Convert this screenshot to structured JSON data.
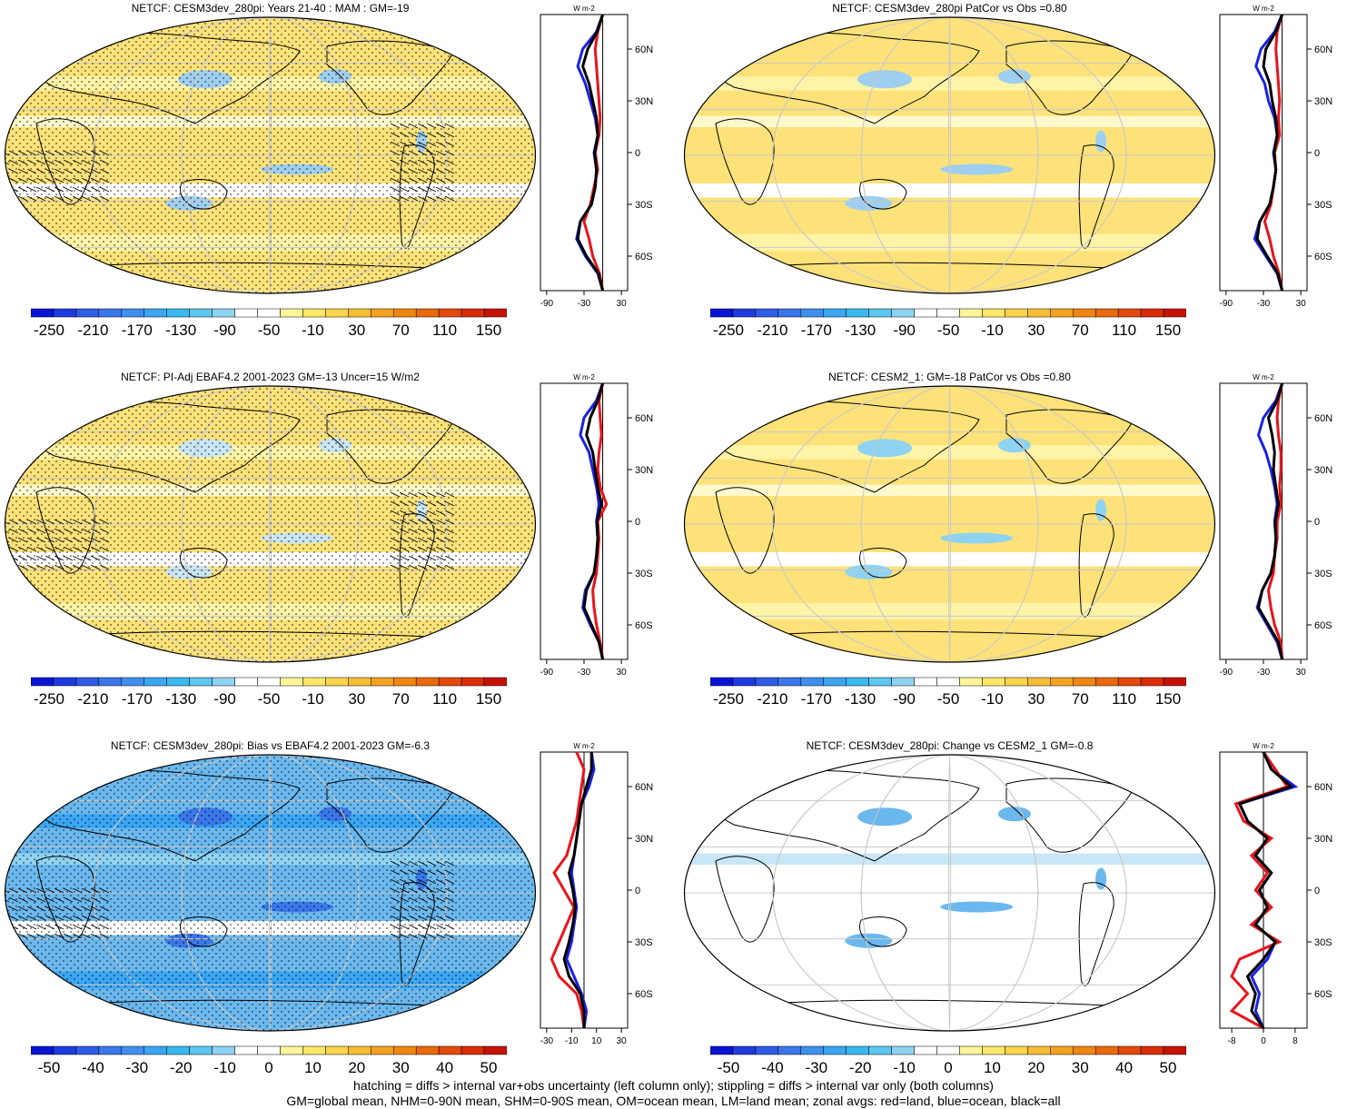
{
  "colors": {
    "ocean_neutral": "#ffffff",
    "land_missing": "#d3d3d3",
    "zonal_land": "#e8141c",
    "zonal_ocean": "#1a21e6",
    "zonal_all": "#000000"
  },
  "zonal_labels": {
    "units": "W m-2",
    "lat_ticks": [
      "60N",
      "30N",
      "0",
      "30S",
      "60S"
    ]
  },
  "colorbars": {
    "wide": {
      "labels": [
        "-250",
        "-210",
        "-170",
        "-130",
        "-90",
        "-50",
        "-10",
        "30",
        "70",
        "110",
        "150"
      ],
      "colors": [
        "#0a14d6",
        "#1f3be0",
        "#2f5be6",
        "#3a77ea",
        "#3f8fee",
        "#3ba6f2",
        "#39b9ef",
        "#5ec7f1",
        "#8fd3f2",
        "#ffffff",
        "#ffffff",
        "#fff59a",
        "#fde768",
        "#fad44a",
        "#f7bd33",
        "#f4a221",
        "#f08612",
        "#ea690c",
        "#e34a09",
        "#d92c07",
        "#c51204"
      ]
    },
    "narrow": {
      "labels": [
        "-50",
        "-40",
        "-30",
        "-20",
        "-10",
        "0",
        "10",
        "20",
        "30",
        "40",
        "50"
      ],
      "colors": [
        "#0a14d6",
        "#1f3be0",
        "#2f5be6",
        "#3a77ea",
        "#3f8fee",
        "#3ba6f2",
        "#39b9ef",
        "#5ec7f1",
        "#8fd3f2",
        "#ffffff",
        "#ffffff",
        "#fff59a",
        "#fde768",
        "#fad44a",
        "#f7bd33",
        "#f4a221",
        "#f08612",
        "#ea690c",
        "#e34a09",
        "#d92c07",
        "#c51204"
      ]
    }
  },
  "panels": [
    {
      "title": "NETCF: CESM3dev_280pi: Years 21-40 : MAM : GM=-19",
      "x_ticks": [
        "-90",
        "-30",
        "30"
      ],
      "colorbar": "wide"
    },
    {
      "title": "NETCF: CESM3dev_280pi PatCor vs Obs =0.80",
      "x_ticks": [
        "-90",
        "-30",
        "30"
      ],
      "colorbar": "wide"
    },
    {
      "title": "NETCF: PI-Adj EBAF4.2 2001-2023 GM=-13 Uncer=15 W/m2",
      "x_ticks": [
        "-90",
        "-30",
        "30"
      ],
      "colorbar": "wide"
    },
    {
      "title": "NETCF: CESM2_1: GM=-18 PatCor vs Obs =0.80",
      "x_ticks": [
        "-90",
        "-30",
        "30"
      ],
      "colorbar": "wide"
    },
    {
      "title": "NETCF: CESM3dev_280pi: Bias vs EBAF4.2 2001-2023 GM=-6.3",
      "x_ticks": [
        "-30",
        "-10",
        "10",
        "30"
      ],
      "colorbar": "narrow"
    },
    {
      "title": "NETCF: CESM3dev_280pi: Change vs CESM2_1 GM=-0.8",
      "x_ticks": [
        "-8",
        "0",
        "8"
      ],
      "colorbar": "narrow"
    }
  ],
  "footer": {
    "line1": "hatching = diffs > internal var+obs uncertainty (left column only); stippling = diffs > internal var only (both columns)",
    "line2": "GM=global mean, NHM=0-90N mean, SHM=0-90S mean, OM=ocean mean, LM=land mean; zonal avgs: red=land, blue=ocean, black=all"
  },
  "chart_data": [
    {
      "type": "heatmap",
      "title": "NETCF: CESM3dev_280pi: Years 21-40 : MAM : GM=-19",
      "colorbar_ticks": [
        -250,
        -210,
        -170,
        -130,
        -90,
        -50,
        -10,
        30,
        70,
        110,
        150
      ],
      "zonal_profile": {
        "lat": [
          80,
          70,
          60,
          50,
          40,
          30,
          20,
          10,
          0,
          -10,
          -20,
          -30,
          -40,
          -50,
          -60,
          -70,
          -80
        ],
        "ocean": [
          0,
          -10,
          -32,
          -40,
          -28,
          -20,
          -12,
          -8,
          -14,
          -10,
          -12,
          -18,
          -36,
          -42,
          -28,
          -8,
          0
        ],
        "land": [
          0,
          -8,
          -12,
          -10,
          -8,
          -6,
          -4,
          -6,
          -12,
          -8,
          -14,
          -20,
          -30,
          -22,
          -16,
          -5,
          0
        ],
        "all": [
          0,
          -9,
          -24,
          -32,
          -22,
          -16,
          -10,
          -8,
          -13,
          -10,
          -12,
          -18,
          -36,
          -40,
          -26,
          -7,
          0
        ],
        "xlim": [
          -100,
          40
        ]
      }
    },
    {
      "type": "heatmap",
      "title": "NETCF: CESM3dev_280pi PatCor vs Obs =0.80",
      "colorbar_ticks": [
        -250,
        -210,
        -170,
        -130,
        -90,
        -50,
        -10,
        30,
        70,
        110,
        150
      ],
      "zonal_profile": {
        "lat": [
          80,
          70,
          60,
          50,
          40,
          30,
          20,
          10,
          0,
          -10,
          -20,
          -30,
          -40,
          -50,
          -60,
          -70,
          -80
        ],
        "ocean": [
          0,
          -12,
          -34,
          -42,
          -28,
          -22,
          -12,
          -8,
          -14,
          -10,
          -14,
          -20,
          -36,
          -44,
          -26,
          -8,
          0
        ],
        "land": [
          0,
          -8,
          -10,
          -8,
          -6,
          -4,
          -6,
          -4,
          -12,
          -10,
          -14,
          -18,
          -28,
          -20,
          -14,
          -5,
          0
        ],
        "all": [
          0,
          -10,
          -26,
          -30,
          -20,
          -16,
          -10,
          -8,
          -13,
          -10,
          -14,
          -20,
          -36,
          -40,
          -24,
          -7,
          0
        ],
        "xlim": [
          -100,
          40
        ]
      }
    },
    {
      "type": "heatmap",
      "title": "NETCF: PI-Adj EBAF4.2 2001-2023 GM=-13 Uncer=15 W/m2",
      "colorbar_ticks": [
        -250,
        -210,
        -170,
        -130,
        -90,
        -50,
        -10,
        30,
        70,
        110,
        150
      ],
      "zonal_profile": {
        "lat": [
          80,
          70,
          60,
          50,
          40,
          30,
          20,
          10,
          0,
          -10,
          -20,
          -30,
          -40,
          -50,
          -60,
          -70,
          -80
        ],
        "ocean": [
          0,
          -10,
          -30,
          -36,
          -22,
          -16,
          -10,
          -6,
          -10,
          -8,
          -10,
          -14,
          -28,
          -32,
          -20,
          -6,
          0
        ],
        "land": [
          0,
          -6,
          -4,
          -2,
          -6,
          -8,
          -4,
          6,
          -8,
          -6,
          -8,
          -10,
          -16,
          -14,
          -10,
          -4,
          0
        ],
        "all": [
          0,
          -8,
          -20,
          -26,
          -16,
          -12,
          -8,
          -2,
          -9,
          -8,
          -10,
          -14,
          -26,
          -30,
          -18,
          -6,
          0
        ],
        "xlim": [
          -100,
          40
        ]
      }
    },
    {
      "type": "heatmap",
      "title": "NETCF: CESM2_1: GM=-18 PatCor vs Obs =0.80",
      "colorbar_ticks": [
        -250,
        -210,
        -170,
        -130,
        -90,
        -50,
        -10,
        30,
        70,
        110,
        150
      ],
      "zonal_profile": {
        "lat": [
          80,
          70,
          60,
          50,
          40,
          30,
          20,
          10,
          0,
          -10,
          -20,
          -30,
          -40,
          -50,
          -60,
          -70,
          -80
        ],
        "ocean": [
          0,
          -10,
          -30,
          -38,
          -26,
          -18,
          -12,
          -8,
          -12,
          -10,
          -12,
          -18,
          -32,
          -40,
          -24,
          -8,
          0
        ],
        "land": [
          0,
          -6,
          -8,
          -6,
          -2,
          -2,
          -4,
          -2,
          -8,
          -8,
          -12,
          -14,
          -22,
          -18,
          -12,
          -2,
          0
        ],
        "all": [
          0,
          -8,
          -22,
          -16,
          -12,
          -14,
          -10,
          -6,
          -11,
          -10,
          -12,
          -18,
          -32,
          -38,
          -22,
          -6,
          0
        ],
        "xlim": [
          -100,
          40
        ]
      }
    },
    {
      "type": "heatmap",
      "title": "NETCF: CESM3dev_280pi: Bias vs EBAF4.2 2001-2023 GM=-6.3",
      "colorbar_ticks": [
        -50,
        -40,
        -30,
        -20,
        -10,
        0,
        10,
        20,
        30,
        40,
        50
      ],
      "zonal_profile": {
        "lat": [
          80,
          70,
          60,
          50,
          40,
          30,
          20,
          10,
          0,
          -10,
          -20,
          -30,
          -40,
          -50,
          -60,
          -70,
          -80
        ],
        "ocean": [
          6,
          8,
          4,
          -2,
          -4,
          -6,
          -8,
          -10,
          -8,
          -6,
          -8,
          -10,
          -14,
          -8,
          -2,
          2,
          0
        ],
        "land": [
          -6,
          0,
          -2,
          -4,
          -6,
          -10,
          -14,
          -24,
          -16,
          -8,
          -14,
          -20,
          -26,
          -20,
          -6,
          -2,
          0
        ],
        "all": [
          6,
          6,
          2,
          -2,
          -4,
          -6,
          -8,
          -12,
          -9,
          -7,
          -9,
          -12,
          -16,
          -12,
          -3,
          0,
          0
        ],
        "xlim": [
          -35,
          35
        ]
      }
    },
    {
      "type": "heatmap",
      "title": "NETCF: CESM3dev_280pi: Change vs CESM2_1 GM=-0.8",
      "colorbar_ticks": [
        -50,
        -40,
        -30,
        -20,
        -10,
        0,
        10,
        20,
        30,
        40,
        50
      ],
      "zonal_profile": {
        "lat": [
          80,
          70,
          60,
          50,
          40,
          30,
          20,
          10,
          0,
          -10,
          -20,
          -30,
          -40,
          -50,
          -60,
          -70,
          -80
        ],
        "ocean": [
          0,
          2,
          8,
          -6,
          -4,
          1,
          -2,
          2,
          -1,
          1,
          -2,
          3,
          1,
          -3,
          -1,
          -2,
          0
        ],
        "land": [
          0,
          3,
          6,
          -7,
          -5,
          2,
          -3,
          1,
          -2,
          2,
          -3,
          4,
          -6,
          -8,
          -4,
          -8,
          0
        ],
        "all": [
          0,
          2,
          7,
          -6,
          -4,
          1,
          -2,
          2,
          -1,
          1,
          -2,
          3,
          0,
          -4,
          -2,
          -3,
          0
        ],
        "xlim": [
          -11,
          11
        ]
      }
    }
  ]
}
